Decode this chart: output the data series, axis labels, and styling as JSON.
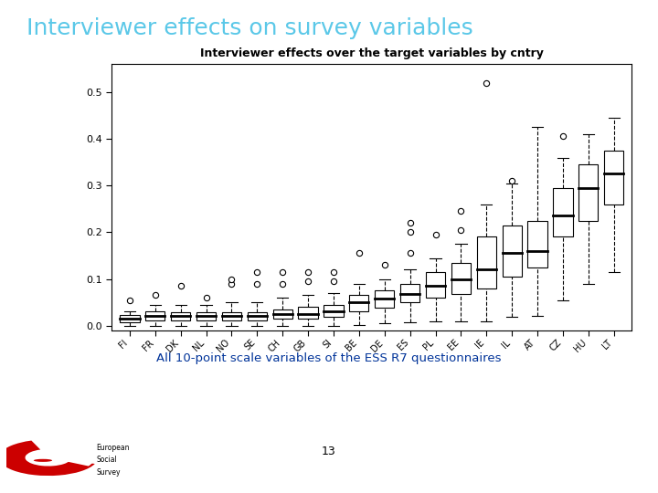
{
  "slide_title": "Interviewer effects on survey variables",
  "plot_title": "Interviewer effects over the target variables by cntry",
  "subtitle": "All 10-point scale variables of the ESS R7 questionnaires",
  "page_number": "13",
  "slide_bg": "#ffffff",
  "title_color": "#5BC8E8",
  "subtitle_color": "#003399",
  "footer_bg": "#2A9BAE",
  "ku_leuven_bg": "#003399",
  "ku_leuven_light": "#4AABCF",
  "countries": [
    "FI",
    "FR",
    "DK",
    "NL",
    "NO",
    "SE",
    "CH",
    "GB",
    "SI",
    "BE",
    "DE",
    "ES",
    "PL",
    "EE",
    "IE",
    "IL",
    "AT",
    "CZ",
    "HU",
    "LT"
  ],
  "box_data": {
    "FI": {
      "q1": 0.007,
      "med": 0.015,
      "q3": 0.022,
      "lower_whisker": 0.0,
      "upper_whisker": 0.03,
      "outliers": [
        0.055
      ]
    },
    "FR": {
      "q1": 0.012,
      "med": 0.02,
      "q3": 0.03,
      "lower_whisker": 0.0,
      "upper_whisker": 0.045,
      "outliers": [
        0.065
      ]
    },
    "DK": {
      "q1": 0.012,
      "med": 0.02,
      "q3": 0.028,
      "lower_whisker": 0.0,
      "upper_whisker": 0.045,
      "outliers": [
        0.085
      ]
    },
    "NL": {
      "q1": 0.012,
      "med": 0.02,
      "q3": 0.028,
      "lower_whisker": 0.0,
      "upper_whisker": 0.045,
      "outliers": [
        0.06
      ]
    },
    "NO": {
      "q1": 0.012,
      "med": 0.02,
      "q3": 0.028,
      "lower_whisker": 0.0,
      "upper_whisker": 0.05,
      "outliers": [
        0.09,
        0.1
      ]
    },
    "SE": {
      "q1": 0.012,
      "med": 0.02,
      "q3": 0.028,
      "lower_whisker": 0.0,
      "upper_whisker": 0.05,
      "outliers": [
        0.09,
        0.115
      ]
    },
    "CH": {
      "q1": 0.015,
      "med": 0.025,
      "q3": 0.035,
      "lower_whisker": 0.0,
      "upper_whisker": 0.06,
      "outliers": [
        0.09,
        0.115
      ]
    },
    "GB": {
      "q1": 0.015,
      "med": 0.025,
      "q3": 0.04,
      "lower_whisker": 0.0,
      "upper_whisker": 0.065,
      "outliers": [
        0.095,
        0.115
      ]
    },
    "SI": {
      "q1": 0.018,
      "med": 0.03,
      "q3": 0.045,
      "lower_whisker": 0.0,
      "upper_whisker": 0.07,
      "outliers": [
        0.095,
        0.115
      ]
    },
    "BE": {
      "q1": 0.03,
      "med": 0.05,
      "q3": 0.065,
      "lower_whisker": 0.002,
      "upper_whisker": 0.09,
      "outliers": [
        0.155
      ]
    },
    "DE": {
      "q1": 0.038,
      "med": 0.058,
      "q3": 0.075,
      "lower_whisker": 0.005,
      "upper_whisker": 0.1,
      "outliers": [
        0.13
      ]
    },
    "ES": {
      "q1": 0.05,
      "med": 0.068,
      "q3": 0.09,
      "lower_whisker": 0.008,
      "upper_whisker": 0.12,
      "outliers": [
        0.155,
        0.2,
        0.22
      ]
    },
    "PL": {
      "q1": 0.06,
      "med": 0.085,
      "q3": 0.115,
      "lower_whisker": 0.01,
      "upper_whisker": 0.145,
      "outliers": [
        0.195
      ]
    },
    "EE": {
      "q1": 0.068,
      "med": 0.1,
      "q3": 0.135,
      "lower_whisker": 0.01,
      "upper_whisker": 0.175,
      "outliers": [
        0.205,
        0.245
      ]
    },
    "IE": {
      "q1": 0.08,
      "med": 0.12,
      "q3": 0.19,
      "lower_whisker": 0.01,
      "upper_whisker": 0.26,
      "outliers": [
        0.52
      ]
    },
    "IL": {
      "q1": 0.105,
      "med": 0.155,
      "q3": 0.215,
      "lower_whisker": 0.018,
      "upper_whisker": 0.305,
      "outliers": [
        0.31
      ]
    },
    "AT": {
      "q1": 0.125,
      "med": 0.16,
      "q3": 0.225,
      "lower_whisker": 0.02,
      "upper_whisker": 0.425,
      "outliers": []
    },
    "CZ": {
      "q1": 0.19,
      "med": 0.235,
      "q3": 0.295,
      "lower_whisker": 0.055,
      "upper_whisker": 0.36,
      "outliers": [
        0.405
      ]
    },
    "HU": {
      "q1": 0.225,
      "med": 0.295,
      "q3": 0.345,
      "lower_whisker": 0.09,
      "upper_whisker": 0.41,
      "outliers": []
    },
    "LT": {
      "q1": 0.26,
      "med": 0.325,
      "q3": 0.375,
      "lower_whisker": 0.115,
      "upper_whisker": 0.445,
      "outliers": []
    }
  },
  "ylim": [
    -0.01,
    0.56
  ],
  "yticks": [
    0.0,
    0.1,
    0.2,
    0.3,
    0.4,
    0.5
  ],
  "box_color": "white",
  "box_edge_color": "black",
  "median_color": "black",
  "whisker_color": "black",
  "outlier_color": "white",
  "outlier_edge_color": "black"
}
